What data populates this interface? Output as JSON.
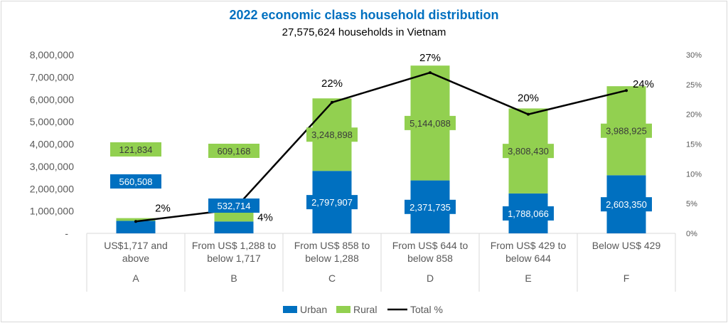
{
  "chart_data": {
    "type": "bar",
    "stacked": true,
    "title": "2022 economic class household distribution",
    "subtitle": "27,575,624  households  in Vietnam",
    "categories": [
      {
        "label": [
          "US$1,717 and",
          "above"
        ],
        "letter": "A"
      },
      {
        "label": [
          "From US$ 1,288 to",
          "below 1,717"
        ],
        "letter": "B"
      },
      {
        "label": [
          "From US$ 858 to",
          "below 1,288"
        ],
        "letter": "C"
      },
      {
        "label": [
          "From US$ 644 to",
          "below 858"
        ],
        "letter": "D"
      },
      {
        "label": [
          "From US$ 429 to",
          "below 644"
        ],
        "letter": "E"
      },
      {
        "label": [
          "Below US$ 429"
        ],
        "letter": "F"
      }
    ],
    "series": [
      {
        "name": "Urban",
        "type": "bar",
        "axis": "left",
        "color": "#0070C0",
        "values": [
          560508,
          532714,
          2797907,
          2371735,
          1788066,
          2603350
        ],
        "labels": [
          "560,508",
          "532,714",
          "2,797,907",
          "2,371,735",
          "1,788,066",
          "2,603,350"
        ]
      },
      {
        "name": "Rural",
        "type": "bar",
        "axis": "left",
        "color": "#92D050",
        "values": [
          121834,
          609168,
          3248898,
          5144088,
          3808430,
          3988925
        ],
        "labels": [
          "121,834",
          "609,168",
          "3,248,898",
          "5,144,088",
          "3,808,430",
          "3,988,925"
        ]
      },
      {
        "name": "Total %",
        "type": "line",
        "axis": "right",
        "color": "#000000",
        "values": [
          2,
          4,
          22,
          27,
          20,
          24
        ],
        "labels": [
          "2%",
          "4%",
          "22%",
          "27%",
          "20%",
          "24%"
        ]
      }
    ],
    "y_left": {
      "ylim": [
        0,
        8000000
      ],
      "ticks": [
        "-",
        "1,000,000",
        "2,000,000",
        "3,000,000",
        "4,000,000",
        "5,000,000",
        "6,000,000",
        "7,000,000",
        "8,000,000"
      ]
    },
    "y_right": {
      "ylim": [
        0,
        30
      ],
      "ticks": [
        "0%",
        "5%",
        "10%",
        "15%",
        "20%",
        "25%",
        "30%"
      ]
    },
    "grid": false,
    "legend": "bottom",
    "title_color": "#0070C0"
  }
}
